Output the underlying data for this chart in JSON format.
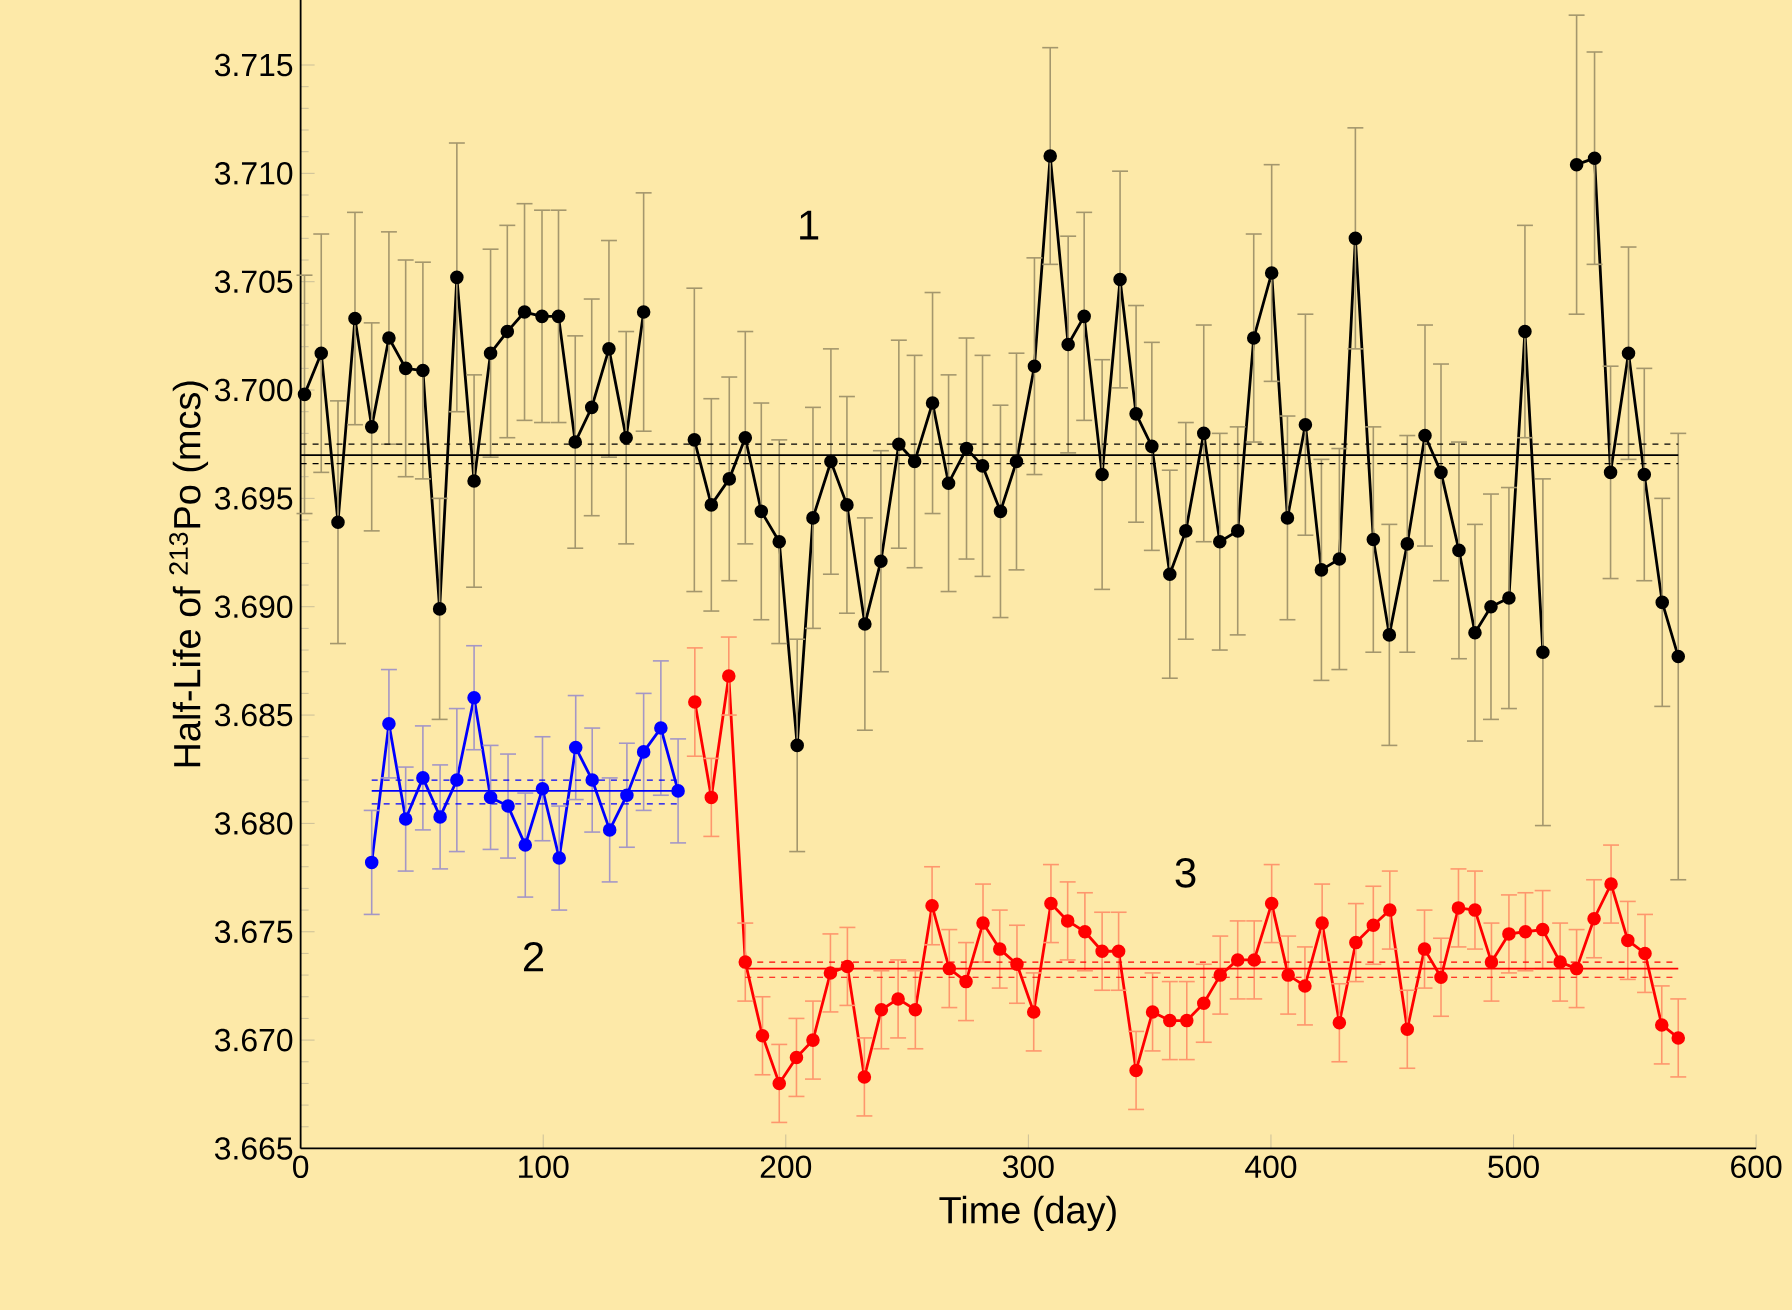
{
  "chart_data": {
    "type": "line",
    "xlabel": "Time (day)",
    "ylabel": "Half-Life of $^{213}$Po (mcs)",
    "xlim": [
      0,
      600
    ],
    "xticks": [
      0,
      100,
      200,
      300,
      400,
      500,
      600
    ],
    "ylim": [
      3.665,
      3.718
    ],
    "yticks": [
      3.665,
      {
        "value": 3.67,
        "label": "3.670"
      },
      3.675,
      {
        "value": 3.68,
        "label": "3.680"
      },
      3.685,
      {
        "value": 3.69,
        "label": "3.690"
      },
      3.695,
      {
        "value": 3.7,
        "label": "3.700"
      },
      3.705,
      {
        "value": 3.71,
        "label": "3.710"
      },
      3.715
    ],
    "marker": "circle",
    "series": [
      {
        "color": "#000000",
        "x": [
          1.6,
          8.5,
          15.4,
          22.4,
          29.3,
          36.4,
          43.3,
          50.4,
          57.3,
          64.4,
          71.5,
          78.3,
          85.2,
          92.3,
          99.5,
          106.3,
          113.2,
          120.0,
          127.1,
          134.2,
          141.4,
          152,
          162.3,
          169.3,
          176.7,
          183.3,
          189.9,
          197.3,
          204.7,
          211.2,
          218.6,
          225.2,
          232.6,
          239.2,
          246.6,
          253.1,
          260.5,
          267.1,
          274.5,
          281.1,
          288.5,
          295.1,
          302.5,
          309.0,
          316.4,
          323.0,
          330.4,
          337.8,
          344.4,
          350.9,
          358.3,
          364.9,
          372.3,
          378.9,
          386.3,
          392.9,
          400.3,
          406.8,
          414.2,
          420.8,
          428.2,
          434.8,
          442.2,
          448.8,
          456.2,
          463.5,
          470.1,
          477.5,
          484.1,
          490.7,
          498.1,
          504.7,
          512.1,
          519,
          526.0,
          533.4,
          540.0,
          547.4,
          553.9,
          561.3,
          567.9
        ],
        "values": [
          3.6998,
          3.7017,
          3.6939,
          3.7033,
          3.6983,
          3.7024,
          3.701,
          3.7009,
          3.6899,
          3.7052,
          3.6958,
          3.7017,
          3.7027,
          3.7036,
          3.7034,
          3.7034,
          3.6976,
          3.6992,
          3.7019,
          3.6978,
          3.7036,
          null,
          3.6977,
          3.6947,
          3.6959,
          3.6978,
          3.6944,
          3.693,
          3.6836,
          3.6941,
          3.6967,
          3.6947,
          3.6892,
          3.6921,
          3.6975,
          3.6967,
          3.6994,
          3.6957,
          3.6973,
          3.6965,
          3.6944,
          3.6967,
          3.7011,
          3.7108,
          3.7021,
          3.7034,
          3.6961,
          3.7051,
          3.6989,
          3.6974,
          3.6915,
          3.6935,
          3.698,
          3.693,
          3.6935,
          3.7024,
          3.7054,
          3.6941,
          3.6984,
          3.6917,
          3.6922,
          3.707,
          3.6931,
          3.6887,
          3.6929,
          3.6979,
          3.6962,
          3.6926,
          3.6888,
          3.69,
          3.6904,
          3.7027,
          3.6879,
          null,
          3.7104,
          3.7107,
          3.6962,
          3.7017,
          3.6961,
          3.6902,
          3.6877
        ],
        "errors": [
          0.0055,
          0.0055,
          0.0056,
          0.0049,
          0.0048,
          0.0049,
          0.005,
          0.005,
          0.0051,
          0.0062,
          0.0049,
          0.0048,
          0.0049,
          0.005,
          0.0049,
          0.0049,
          0.0049,
          0.005,
          0.005,
          0.0049,
          0.0055,
          null,
          0.007,
          0.0049,
          0.0047,
          0.0049,
          0.005,
          0.0047,
          0.0049,
          0.0051,
          0.0052,
          0.005,
          0.0049,
          0.0051,
          0.0048,
          0.0049,
          0.0051,
          0.005,
          0.0051,
          0.0051,
          0.0049,
          0.005,
          0.005,
          0.005,
          0.005,
          0.0048,
          0.0053,
          0.005,
          0.005,
          0.0048,
          0.0048,
          0.005,
          0.005,
          0.005,
          0.0048,
          0.0048,
          0.005,
          0.0047,
          0.0051,
          0.0051,
          0.0051,
          0.0051,
          0.0052,
          0.0051,
          0.005,
          0.0051,
          0.005,
          0.005,
          0.005,
          0.0052,
          0.0051,
          0.0049,
          0.008,
          null,
          0.0069,
          0.0049,
          0.0049,
          0.0049,
          0.0049,
          0.0048,
          0.0103
        ]
      },
      {
        "color": "#0000ff",
        "x": [
          29.3,
          36.4,
          43.3,
          50.4,
          57.5,
          64.4,
          71.5,
          78.3,
          85.5,
          92.6,
          99.7,
          106.6,
          113.4,
          120.2,
          127.4,
          134.5,
          141.4,
          148.5,
          155.6
        ],
        "values": [
          3.6782,
          3.6846,
          3.6802,
          3.6821,
          3.6803,
          3.682,
          3.6858,
          3.6812,
          3.6808,
          3.679,
          3.6816,
          3.6784,
          3.6835,
          3.682,
          3.6797,
          3.6813,
          3.6833,
          3.6844,
          3.6815
        ],
        "errors": [
          0.0024,
          0.0025,
          0.0024,
          0.0024,
          0.0024,
          0.0033,
          0.0024,
          0.0024,
          0.0024,
          0.0024,
          0.0024,
          0.0024,
          0.0024,
          0.0024,
          0.0024,
          0.0024,
          0.0027,
          0.0031,
          0.0024
        ]
      },
      {
        "color": "#ff0000",
        "x": [
          162.5,
          169.3,
          176.5,
          183.3,
          190.4,
          197.3,
          204.4,
          211.2,
          218.4,
          225.4,
          232.4,
          239.4,
          246.3,
          253.4,
          260.3,
          267.4,
          274.3,
          281.3,
          288.2,
          295.3,
          302.2,
          309.3,
          316.2,
          323.3,
          330.4,
          337.2,
          344.4,
          351.2,
          358.3,
          365.3,
          372.3,
          379.1,
          386.3,
          393.1,
          400.3,
          407.1,
          414.0,
          421.1,
          428.2,
          435.0,
          442.2,
          449.0,
          456.2,
          463.3,
          470.1,
          477.3,
          484.1,
          490.9,
          498.1,
          504.9,
          512.0,
          519.2,
          526.0,
          533.2,
          540.2,
          547.1,
          554.2,
          561.1,
          567.9
        ],
        "values": [
          3.6856,
          3.6812,
          3.6868,
          3.6736,
          3.6702,
          3.668,
          3.6692,
          3.67,
          3.6731,
          3.6734,
          3.6683,
          3.6714,
          3.6719,
          3.6714,
          3.6762,
          3.6733,
          3.6727,
          3.6754,
          3.6742,
          3.6735,
          3.6713,
          3.6763,
          3.6755,
          3.675,
          3.6741,
          3.6741,
          3.6686,
          3.6713,
          3.6709,
          3.6709,
          3.6717,
          3.673,
          3.6737,
          3.6737,
          3.6763,
          3.673,
          3.6725,
          3.6754,
          3.6708,
          3.6745,
          3.6753,
          3.676,
          3.6705,
          3.6742,
          3.6729,
          3.6761,
          3.676,
          3.6736,
          3.6749,
          3.675,
          3.6751,
          3.6736,
          3.6733,
          3.6756,
          3.6772,
          3.6746,
          3.674,
          3.6707,
          3.6701
        ],
        "errors": [
          0.0025,
          0.0018,
          0.0018,
          0.0018,
          0.0018,
          0.0018,
          0.0018,
          0.0018,
          0.0018,
          0.0018,
          0.0018,
          0.0018,
          0.0018,
          0.0018,
          0.0018,
          0.0018,
          0.0018,
          0.0018,
          0.0018,
          0.0018,
          0.0018,
          0.0018,
          0.0018,
          0.0018,
          0.0018,
          0.0018,
          0.0018,
          0.0018,
          0.0018,
          0.0018,
          0.0018,
          0.0018,
          0.0018,
          0.0018,
          0.0018,
          0.0018,
          0.0018,
          0.0018,
          0.0018,
          0.0018,
          0.0018,
          0.0018,
          0.0018,
          0.0018,
          0.0018,
          0.0018,
          0.0018,
          0.0018,
          0.0018,
          0.0018,
          0.0018,
          0.0018,
          0.0018,
          0.0018,
          0.0018,
          0.0018,
          0.0018,
          0.0018,
          0.0018
        ]
      },
      {
        "type": "line",
        "marker": "none",
        "line_style": "solid",
        "color": "#000000",
        "x": [
          0,
          567.9
        ],
        "values": [
          3.697,
          3.697
        ]
      },
      {
        "type": "line",
        "marker": "none",
        "line_style": "dashed",
        "color": "#000000",
        "x": [
          0,
          567.9
        ],
        "values": [
          3.6975,
          3.6975
        ]
      },
      {
        "type": "line",
        "marker": "none",
        "line_style": "dashed",
        "color": "#000000",
        "x": [
          0,
          567.9
        ],
        "values": [
          3.6966,
          3.6966
        ]
      },
      {
        "type": "line",
        "marker": "none",
        "line_style": "solid",
        "color": "#0000ff",
        "x": [
          29.3,
          155.6
        ],
        "values": [
          3.6815,
          3.6815
        ]
      },
      {
        "type": "line",
        "marker": "none",
        "line_style": "dashed",
        "color": "#0000ff",
        "x": [
          29.3,
          155.6
        ],
        "values": [
          3.682,
          3.682
        ]
      },
      {
        "type": "line",
        "marker": "none",
        "line_style": "dashed",
        "color": "#0000ff",
        "x": [
          29.3,
          155.6
        ],
        "values": [
          3.6809,
          3.6809
        ]
      },
      {
        "type": "line",
        "marker": "none",
        "line_style": "solid",
        "color": "#ff0000",
        "x": [
          183.3,
          567.9
        ],
        "values": [
          3.6733,
          3.6733
        ]
      },
      {
        "type": "line",
        "marker": "none",
        "line_style": "dashed",
        "color": "#ff0000",
        "x": [
          183.3,
          567.9
        ],
        "values": [
          3.6736,
          3.6736
        ]
      },
      {
        "type": "line",
        "marker": "none",
        "line_style": "dashed",
        "color": "#ff0000",
        "x": [
          183.3,
          567.9
        ],
        "values": [
          3.6729,
          3.6729
        ]
      }
    ],
    "annotations": [
      "1",
      "2",
      "3"
    ]
  }
}
